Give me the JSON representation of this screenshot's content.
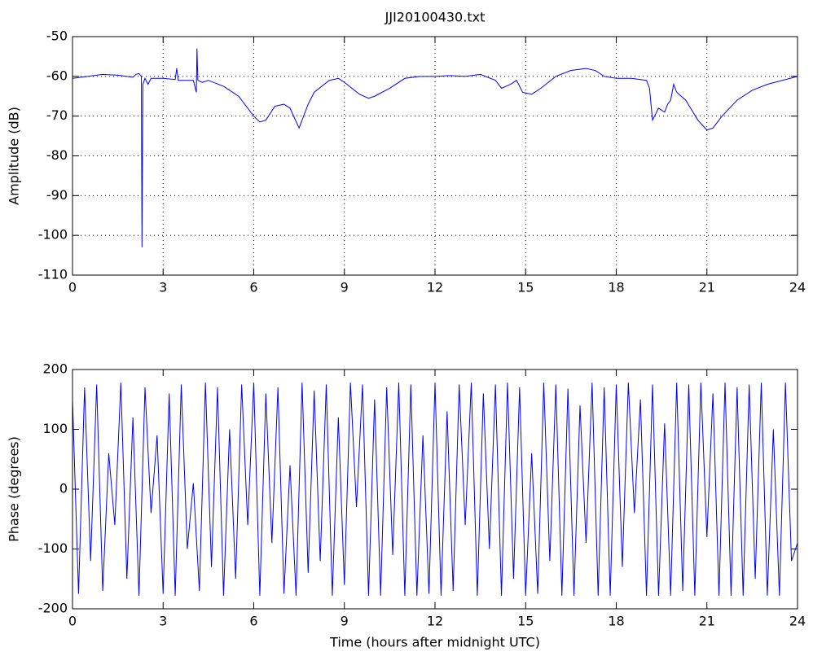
{
  "chart_data": [
    {
      "type": "line",
      "title": "JJI20100430.txt",
      "ylabel": "Amplitude (dB)",
      "x": [
        0,
        0.5,
        1,
        1.5,
        2,
        2.1,
        2.2,
        2.28,
        2.3,
        2.33,
        2.4,
        2.5,
        2.6,
        3,
        3.4,
        3.45,
        3.5,
        4,
        4.1,
        4.12,
        4.15,
        4.3,
        4.5,
        5,
        5.5,
        6,
        6.2,
        6.4,
        6.7,
        7,
        7.2,
        7.5,
        7.8,
        8,
        8.5,
        8.8,
        9,
        9.5,
        9.8,
        10,
        10.5,
        11,
        11.5,
        12,
        12.5,
        13,
        13.5,
        14,
        14.2,
        14.5,
        14.7,
        14.9,
        15.2,
        15.5,
        16,
        16.5,
        17,
        17.3,
        17.6,
        18,
        18.5,
        19,
        19.1,
        19.2,
        19.4,
        19.6,
        19.7,
        19.8,
        19.9,
        20,
        20.3,
        20.7,
        21,
        21.2,
        21.5,
        22,
        22.5,
        23,
        23.5,
        24
      ],
      "series": [
        {
          "color": "#0000ff",
          "values": [
            -60.5,
            -60,
            -59.5,
            -59.7,
            -60.2,
            -59.5,
            -59.3,
            -60,
            -103,
            -62,
            -60.5,
            -62,
            -60.5,
            -60.5,
            -60.8,
            -58,
            -61,
            -61,
            -64,
            -53,
            -61,
            -61.5,
            -61,
            -62.5,
            -65,
            -70,
            -71.5,
            -71,
            -67.5,
            -67,
            -68,
            -73,
            -67,
            -64,
            -61,
            -60.5,
            -61.5,
            -64.5,
            -65.5,
            -65,
            -63,
            -60.5,
            -60,
            -60,
            -59.8,
            -60,
            -59.5,
            -61,
            -63,
            -62,
            -61,
            -64,
            -64.5,
            -63,
            -60,
            -58.5,
            -58,
            -58.5,
            -60,
            -60.5,
            -60.5,
            -61,
            -63,
            -71,
            -68,
            -69,
            -67,
            -66,
            -62,
            -64,
            -66,
            -71,
            -73.5,
            -73,
            -70,
            -66,
            -63.5,
            -62,
            -61,
            -60
          ]
        }
      ],
      "xlim": [
        0,
        24
      ],
      "xticks": [
        0,
        3,
        6,
        9,
        12,
        15,
        18,
        21,
        24
      ],
      "ylim": [
        -110,
        -50
      ],
      "yticks": [
        -110,
        -100,
        -90,
        -80,
        -70,
        -60,
        -50
      ],
      "grid": true
    },
    {
      "type": "line",
      "xlabel": "Time (hours after midnight UTC)",
      "ylabel": "Phase (degrees)",
      "x": [
        0,
        0.2,
        0.4,
        0.6,
        0.8,
        1,
        1.2,
        1.4,
        1.6,
        1.8,
        2,
        2.2,
        2.4,
        2.6,
        2.8,
        3,
        3.2,
        3.4,
        3.6,
        3.8,
        4,
        4.2,
        4.4,
        4.6,
        4.8,
        5,
        5.2,
        5.4,
        5.6,
        5.8,
        6,
        6.2,
        6.4,
        6.6,
        6.8,
        7,
        7.2,
        7.4,
        7.6,
        7.8,
        8,
        8.2,
        8.4,
        8.6,
        8.8,
        9,
        9.2,
        9.4,
        9.6,
        9.8,
        10,
        10.2,
        10.4,
        10.6,
        10.8,
        11,
        11.2,
        11.4,
        11.6,
        11.8,
        12,
        12.2,
        12.4,
        12.6,
        12.8,
        13,
        13.2,
        13.4,
        13.6,
        13.8,
        14,
        14.2,
        14.4,
        14.6,
        14.8,
        15,
        15.2,
        15.4,
        15.6,
        15.8,
        16,
        16.2,
        16.4,
        16.6,
        16.8,
        17,
        17.2,
        17.4,
        17.6,
        17.8,
        18,
        18.2,
        18.4,
        18.6,
        18.8,
        19,
        19.2,
        19.4,
        19.6,
        19.8,
        20,
        20.2,
        20.4,
        20.6,
        20.8,
        21,
        21.2,
        21.4,
        21.6,
        21.8,
        22,
        22.2,
        22.4,
        22.6,
        22.8,
        23,
        23.2,
        23.4,
        23.6,
        23.8,
        24
      ],
      "series": [
        {
          "color": "#0000ff",
          "values": [
            150,
            -175,
            170,
            -120,
            175,
            -170,
            60,
            -60,
            178,
            -150,
            120,
            -178,
            170,
            -40,
            90,
            -175,
            160,
            -178,
            175,
            -100,
            10,
            -170,
            178,
            -130,
            170,
            -178,
            100,
            -150,
            175,
            -60,
            178,
            -178,
            160,
            -90,
            170,
            -175,
            40,
            -178,
            178,
            -140,
            165,
            -120,
            175,
            -178,
            120,
            -160,
            178,
            -30,
            175,
            -178,
            150,
            -178,
            170,
            -110,
            178,
            -178,
            175,
            -178,
            90,
            -175,
            178,
            -178,
            130,
            -170,
            175,
            -60,
            178,
            -178,
            160,
            -100,
            175,
            -178,
            178,
            -150,
            170,
            -178,
            60,
            -175,
            178,
            -120,
            175,
            -178,
            168,
            -178,
            140,
            -90,
            178,
            -178,
            170,
            -178,
            175,
            -130,
            178,
            -40,
            150,
            -178,
            175,
            -178,
            110,
            -178,
            178,
            -170,
            175,
            -178,
            178,
            -80,
            160,
            -178,
            178,
            -178,
            170,
            -178,
            175,
            -150,
            178,
            -178,
            100,
            -178,
            178,
            -120,
            -90
          ]
        }
      ],
      "xlim": [
        0,
        24
      ],
      "xticks": [
        0,
        3,
        6,
        9,
        12,
        15,
        18,
        21,
        24
      ],
      "ylim": [
        -200,
        200
      ],
      "yticks": [
        -200,
        -100,
        0,
        100,
        200
      ],
      "grid": false
    }
  ]
}
